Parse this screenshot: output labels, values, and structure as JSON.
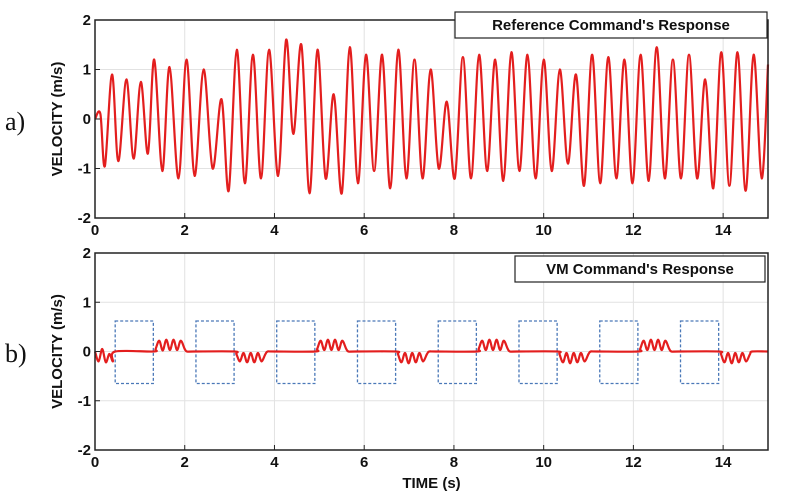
{
  "chart_data": [
    {
      "type": "line",
      "panel_label": "a)",
      "title": "Reference Command's Response",
      "xlabel": "",
      "ylabel": "VELOCITY (m/s)",
      "xlim": [
        0,
        15
      ],
      "ylim": [
        -2,
        2
      ],
      "xticks": [
        0,
        2,
        4,
        6,
        8,
        10,
        12,
        14
      ],
      "yticks": [
        -2,
        -1,
        0,
        1,
        2
      ],
      "grid": true,
      "series": [
        {
          "color": "#e31e1e",
          "x": [
            0,
            0.12,
            0.22,
            0.38,
            0.52,
            0.7,
            0.86,
            1.02,
            1.18,
            1.32,
            1.5,
            1.66,
            1.86,
            2.04,
            2.22,
            2.42,
            2.62,
            2.82,
            2.98,
            3.16,
            3.34,
            3.52,
            3.7,
            3.88,
            4.08,
            4.26,
            4.42,
            4.6,
            4.78,
            4.96,
            5.14,
            5.32,
            5.5,
            5.68,
            5.86,
            6.04,
            6.22,
            6.4,
            6.58,
            6.76,
            6.94,
            7.12,
            7.3,
            7.48,
            7.66,
            7.84,
            8.02,
            8.2,
            8.38,
            8.56,
            8.74,
            8.92,
            9.1,
            9.28,
            9.46,
            9.64,
            9.82,
            10.0,
            10.18,
            10.36,
            10.54,
            10.72,
            10.9,
            11.08,
            11.26,
            11.44,
            11.62,
            11.8,
            11.98,
            12.16,
            12.34,
            12.52,
            12.7,
            12.88,
            13.06,
            13.24,
            13.42,
            13.6,
            13.78,
            13.96,
            14.14,
            14.32,
            14.5,
            14.68,
            14.86,
            15.0
          ],
          "y": [
            0,
            0.1,
            -0.95,
            0.9,
            -0.85,
            0.8,
            -0.8,
            0.75,
            -0.7,
            1.2,
            -1.05,
            1.05,
            -1.2,
            1.2,
            -1.15,
            1.0,
            -1.0,
            0.4,
            -1.45,
            1.4,
            -1.3,
            1.3,
            -1.2,
            1.4,
            -1.15,
            1.6,
            -0.3,
            1.5,
            -1.5,
            1.4,
            -1.2,
            0.5,
            -1.5,
            1.45,
            -1.3,
            1.3,
            -1.05,
            1.3,
            -1.4,
            1.4,
            -1.2,
            1.2,
            -1.2,
            1.0,
            -1.0,
            0.35,
            -1.2,
            1.25,
            -1.2,
            1.3,
            -1.05,
            1.2,
            -1.25,
            1.35,
            -1.05,
            1.3,
            -1.2,
            1.2,
            -1.05,
            1.0,
            -0.9,
            0.9,
            -1.35,
            1.3,
            -1.3,
            1.25,
            -1.2,
            1.2,
            -1.3,
            1.3,
            -1.25,
            1.45,
            -1.2,
            1.2,
            -1.2,
            1.3,
            -1.2,
            0.8,
            -1.4,
            1.35,
            -1.35,
            1.35,
            -1.45,
            1.3,
            -1.2,
            1.1
          ]
        }
      ]
    },
    {
      "type": "line",
      "panel_label": "b)",
      "title": "VM Command's Response",
      "xlabel": "TIME (s)",
      "ylabel": "VELOCITY (m/s)",
      "xlim": [
        0,
        15
      ],
      "ylim": [
        -2,
        2
      ],
      "xticks": [
        0,
        2,
        4,
        6,
        8,
        10,
        12,
        14
      ],
      "yticks": [
        -2,
        -1,
        0,
        1,
        2
      ],
      "grid": true,
      "series": [
        {
          "color": "#e31e1e",
          "x": [
            0,
            0.08,
            0.16,
            0.24,
            0.32,
            0.4,
            0.45,
            1.3,
            1.35,
            1.43,
            1.51,
            1.59,
            1.67,
            1.75,
            1.83,
            1.91,
            2.0,
            2.05,
            2.2,
            3.1,
            3.15,
            3.23,
            3.31,
            3.39,
            3.47,
            3.55,
            3.63,
            3.71,
            3.8,
            3.85,
            4.0,
            4.9,
            4.95,
            5.03,
            5.11,
            5.19,
            5.27,
            5.35,
            5.43,
            5.51,
            5.6,
            5.65,
            5.8,
            6.7,
            6.75,
            6.83,
            6.91,
            6.99,
            7.07,
            7.15,
            7.23,
            7.31,
            7.4,
            7.45,
            7.6,
            8.5,
            8.55,
            8.63,
            8.71,
            8.79,
            8.87,
            8.95,
            9.03,
            9.11,
            9.2,
            9.25,
            9.4,
            10.3,
            10.35,
            10.43,
            10.51,
            10.59,
            10.67,
            10.75,
            10.83,
            10.91,
            11.0,
            11.05,
            11.2,
            12.1,
            12.15,
            12.23,
            12.31,
            12.39,
            12.47,
            12.55,
            12.63,
            12.71,
            12.8,
            12.85,
            13.0,
            13.9,
            13.95,
            14.03,
            14.11,
            14.19,
            14.27,
            14.35,
            14.43,
            14.51,
            14.6,
            14.65,
            15.0
          ],
          "y": [
            0,
            -0.2,
            0.05,
            -0.22,
            -0.05,
            -0.2,
            0,
            0,
            0.05,
            0.22,
            0.02,
            0.24,
            0.03,
            0.24,
            0.03,
            0.22,
            0.05,
            0,
            0,
            0,
            -0.05,
            -0.2,
            -0.03,
            -0.22,
            -0.03,
            -0.22,
            -0.03,
            -0.2,
            -0.05,
            0,
            0,
            0,
            0.05,
            0.22,
            0.03,
            0.24,
            0.03,
            0.24,
            0.03,
            0.22,
            0.05,
            0,
            0,
            0,
            -0.05,
            -0.22,
            -0.03,
            -0.24,
            -0.03,
            -0.22,
            -0.03,
            -0.2,
            -0.05,
            0,
            0,
            0,
            0.05,
            0.22,
            0.03,
            0.24,
            0.03,
            0.24,
            0.03,
            0.22,
            0.05,
            0,
            0,
            0,
            -0.05,
            -0.22,
            -0.03,
            -0.24,
            -0.03,
            -0.22,
            -0.03,
            -0.2,
            -0.05,
            0,
            0,
            0,
            0.05,
            0.22,
            0.03,
            0.24,
            0.03,
            0.24,
            0.03,
            0.22,
            0.05,
            0,
            0,
            0,
            -0.05,
            -0.22,
            -0.03,
            -0.24,
            -0.03,
            -0.22,
            -0.03,
            -0.2,
            -0.05,
            0,
            0
          ]
        }
      ],
      "command_pulses": {
        "color": "#4a78b8",
        "y_range": [
          -0.65,
          0.62
        ],
        "x_ranges": [
          [
            0.45,
            1.3
          ],
          [
            2.25,
            3.1
          ],
          [
            4.05,
            4.9
          ],
          [
            5.85,
            6.7
          ],
          [
            7.65,
            8.5
          ],
          [
            9.45,
            10.3
          ],
          [
            11.25,
            12.1
          ],
          [
            13.05,
            13.9
          ]
        ]
      }
    }
  ]
}
